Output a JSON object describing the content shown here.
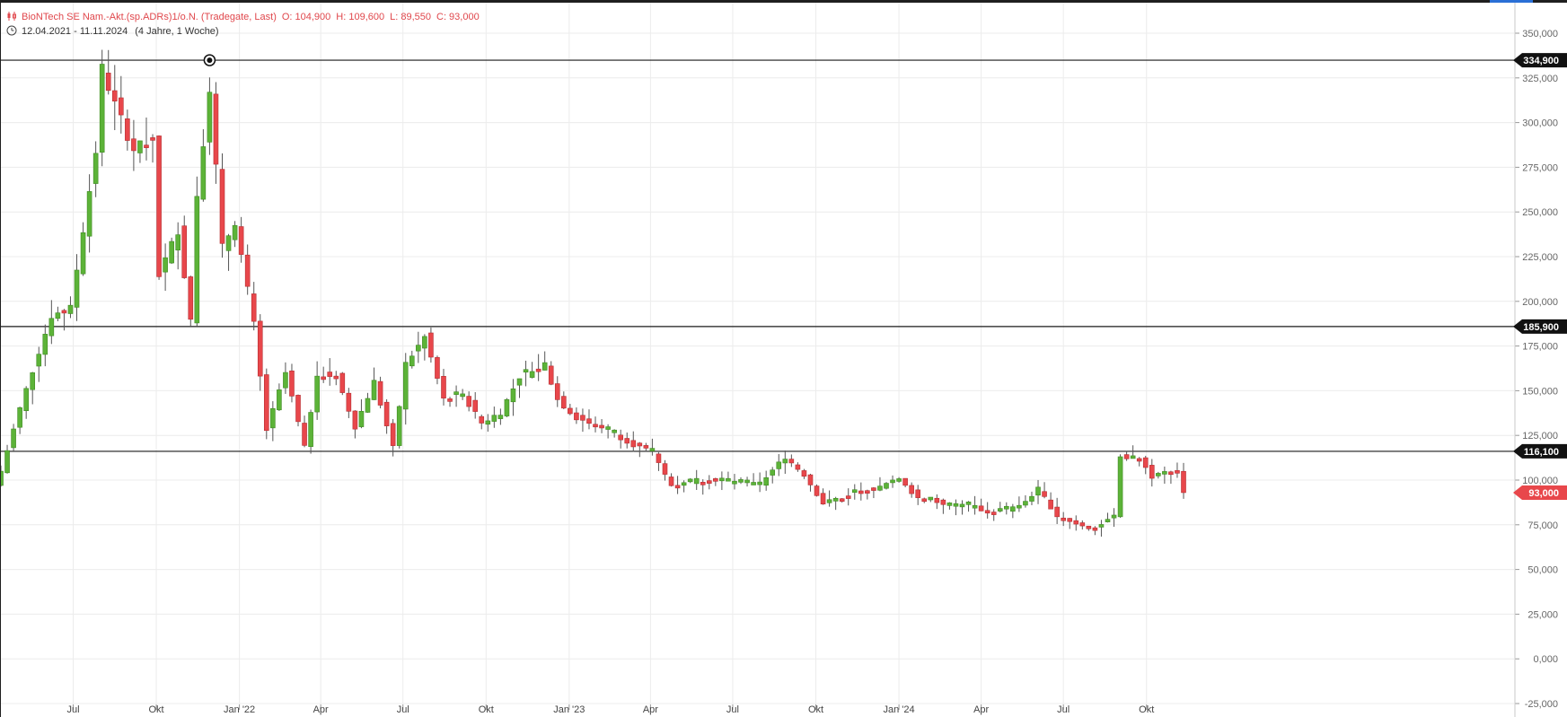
{
  "header": {
    "instrument": "BioNTech SE Nam.-Akt.(sp.ADRs)1/o.N. (Tradegate, Last)",
    "ohlc": {
      "open": "O: 104,900",
      "high": "H: 109,600",
      "low": "L: 89,550",
      "close": "C: 93,000"
    },
    "date_range": "12.04.2021 - 11.11.2024",
    "period": "(4 Jahre, 1 Woche)",
    "icons": [
      "candlestick-icon",
      "clock-icon"
    ]
  },
  "colors": {
    "up": "#5cb338",
    "down": "#e8474b",
    "wick": "#555555",
    "grid": "#ececec",
    "hline": "#1a1a1a",
    "label_black_bg": "#111111",
    "label_red_bg": "#e8474b"
  },
  "chart_data": {
    "type": "candlestick",
    "x_start": "2021-04-12",
    "x_end": "2024-11-11",
    "interval": "1 Woche",
    "ylim": [
      -25000,
      360000
    ],
    "grid": true,
    "y_ticks": [
      {
        "value": 350000,
        "label": "350,000"
      },
      {
        "value": 325000,
        "label": "325,000"
      },
      {
        "value": 300000,
        "label": "300,000"
      },
      {
        "value": 275000,
        "label": "275,000"
      },
      {
        "value": 250000,
        "label": "250,000"
      },
      {
        "value": 225000,
        "label": "225,000"
      },
      {
        "value": 200000,
        "label": "200,000"
      },
      {
        "value": 175000,
        "label": "175,000"
      },
      {
        "value": 150000,
        "label": "150,000"
      },
      {
        "value": 125000,
        "label": "125,000"
      },
      {
        "value": 100000,
        "label": "100,000"
      },
      {
        "value": 75000,
        "label": "75,000"
      },
      {
        "value": 50000,
        "label": "50,000"
      },
      {
        "value": 25000,
        "label": "25,000"
      },
      {
        "value": 0,
        "label": "0,000"
      },
      {
        "value": -25000,
        "label": "-25,000"
      }
    ],
    "x_ticks": [
      {
        "date": "2021-07-01",
        "label": "Jul"
      },
      {
        "date": "2021-10-01",
        "label": "Okt"
      },
      {
        "date": "2022-01-01",
        "label": "Jan '22"
      },
      {
        "date": "2022-04-01",
        "label": "Apr"
      },
      {
        "date": "2022-07-01",
        "label": "Jul"
      },
      {
        "date": "2022-10-01",
        "label": "Okt"
      },
      {
        "date": "2023-01-01",
        "label": "Jan '23"
      },
      {
        "date": "2023-04-01",
        "label": "Apr"
      },
      {
        "date": "2023-07-01",
        "label": "Jul"
      },
      {
        "date": "2023-10-01",
        "label": "Okt"
      },
      {
        "date": "2024-01-01",
        "label": "Jan '24"
      },
      {
        "date": "2024-04-01",
        "label": "Apr"
      },
      {
        "date": "2024-07-01",
        "label": "Jul"
      },
      {
        "date": "2024-10-01",
        "label": "Okt"
      }
    ],
    "horizontal_lines": [
      {
        "value": 334900,
        "label": "334,900",
        "marker": true,
        "marker_date": "2021-11-29"
      },
      {
        "value": 185900,
        "label": "185,900"
      },
      {
        "value": 116100,
        "label": "116,100"
      }
    ],
    "last_price": {
      "value": 93000,
      "label": "93,000"
    },
    "keypoints": [
      {
        "date": "2021-04-12",
        "close": 105000
      },
      {
        "date": "2021-05-03",
        "close": 140000
      },
      {
        "date": "2021-05-24",
        "close": 172000
      },
      {
        "date": "2021-06-07",
        "close": 192000
      },
      {
        "date": "2021-06-28",
        "close": 196000
      },
      {
        "date": "2021-07-12",
        "close": 240000
      },
      {
        "date": "2021-07-26",
        "close": 284000
      },
      {
        "date": "2021-08-02",
        "close": 330000
      },
      {
        "date": "2021-08-16",
        "close": 310000
      },
      {
        "date": "2021-09-06",
        "close": 285000
      },
      {
        "date": "2021-09-27",
        "close": 290000
      },
      {
        "date": "2021-10-04",
        "close": 215000
      },
      {
        "date": "2021-10-25",
        "close": 240000
      },
      {
        "date": "2021-11-08",
        "close": 190000
      },
      {
        "date": "2021-11-15",
        "close": 260000
      },
      {
        "date": "2021-11-29",
        "close": 320000
      },
      {
        "date": "2021-12-13",
        "close": 230000
      },
      {
        "date": "2021-12-27",
        "close": 245000
      },
      {
        "date": "2022-01-17",
        "close": 187000
      },
      {
        "date": "2022-01-31",
        "close": 128000
      },
      {
        "date": "2022-02-21",
        "close": 160000
      },
      {
        "date": "2022-03-14",
        "close": 118000
      },
      {
        "date": "2022-03-28",
        "close": 160000
      },
      {
        "date": "2022-04-18",
        "close": 158000
      },
      {
        "date": "2022-05-09",
        "close": 130000
      },
      {
        "date": "2022-05-30",
        "close": 155000
      },
      {
        "date": "2022-06-20",
        "close": 118000
      },
      {
        "date": "2022-07-04",
        "close": 165000
      },
      {
        "date": "2022-07-25",
        "close": 180000
      },
      {
        "date": "2022-08-15",
        "close": 145000
      },
      {
        "date": "2022-09-05",
        "close": 148000
      },
      {
        "date": "2022-09-26",
        "close": 132000
      },
      {
        "date": "2022-10-17",
        "close": 138000
      },
      {
        "date": "2022-11-07",
        "close": 158000
      },
      {
        "date": "2022-12-05",
        "close": 165000
      },
      {
        "date": "2022-12-19",
        "close": 145000
      },
      {
        "date": "2023-01-09",
        "close": 135000
      },
      {
        "date": "2023-02-13",
        "close": 128000
      },
      {
        "date": "2023-03-13",
        "close": 120000
      },
      {
        "date": "2023-04-03",
        "close": 115000
      },
      {
        "date": "2023-04-24",
        "close": 97000
      },
      {
        "date": "2023-06-05",
        "close": 102000
      },
      {
        "date": "2023-07-03",
        "close": 98000
      },
      {
        "date": "2023-07-31",
        "close": 98000
      },
      {
        "date": "2023-08-28",
        "close": 113000
      },
      {
        "date": "2023-09-18",
        "close": 103000
      },
      {
        "date": "2023-10-09",
        "close": 87000
      },
      {
        "date": "2023-11-06",
        "close": 92000
      },
      {
        "date": "2023-12-04",
        "close": 95000
      },
      {
        "date": "2024-01-01",
        "close": 100000
      },
      {
        "date": "2024-01-22",
        "close": 90000
      },
      {
        "date": "2024-02-19",
        "close": 87000
      },
      {
        "date": "2024-03-18",
        "close": 85000
      },
      {
        "date": "2024-04-15",
        "close": 82000
      },
      {
        "date": "2024-05-13",
        "close": 85000
      },
      {
        "date": "2024-06-03",
        "close": 95000
      },
      {
        "date": "2024-06-24",
        "close": 80000
      },
      {
        "date": "2024-07-15",
        "close": 76000
      },
      {
        "date": "2024-08-05",
        "close": 73000
      },
      {
        "date": "2024-08-26",
        "close": 80000
      },
      {
        "date": "2024-09-02",
        "close": 113000
      },
      {
        "date": "2024-09-23",
        "close": 112000
      },
      {
        "date": "2024-10-07",
        "close": 102000
      },
      {
        "date": "2024-11-04",
        "close": 104900
      },
      {
        "date": "2024-11-11",
        "close": 93000
      }
    ],
    "last_candle": {
      "open": 104900,
      "high": 109600,
      "low": 89550,
      "close": 93000
    }
  }
}
